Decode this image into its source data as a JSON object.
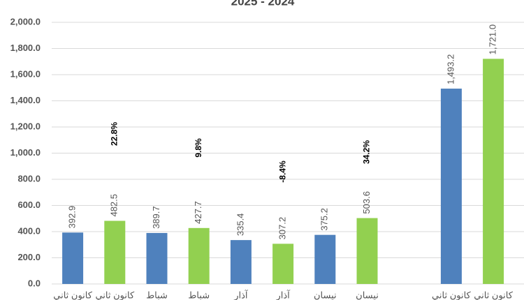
{
  "chart_data": {
    "type": "bar",
    "title": "2025 - 2024",
    "categories": [
      "كانون ثاني",
      "كانون ثاني",
      "شباط",
      "شباط",
      "آذار",
      "آذار",
      "نيسان",
      "نيسان",
      null,
      "كانون ثاني",
      "كانون ثاني"
    ],
    "values": [
      392.9,
      482.5,
      389.7,
      427.7,
      335.4,
      307.2,
      375.2,
      503.6,
      null,
      1493.2,
      1721.0
    ],
    "value_labels": [
      "392.9",
      "482.5",
      "389.7",
      "427.7",
      "335.4",
      "307.2",
      "375.2",
      "503.6",
      null,
      "1,493.2",
      "1,721.0"
    ],
    "colors": [
      "#4f81bd",
      "#92d050",
      "#4f81bd",
      "#92d050",
      "#4f81bd",
      "#92d050",
      "#4f81bd",
      "#92d050",
      null,
      "#4f81bd",
      "#92d050"
    ],
    "annotations": [
      "22.8%",
      "9.8%",
      "-8.4%",
      "34.2%"
    ],
    "ylim": [
      0,
      2000
    ],
    "yticks": [
      {
        "value": 0,
        "label": "0.0"
      },
      {
        "value": 200,
        "label": "200.0"
      },
      {
        "value": 400,
        "label": "400.0"
      },
      {
        "value": 600,
        "label": "600.0"
      },
      {
        "value": 800,
        "label": "800.0"
      },
      {
        "value": 1000,
        "label": "1,000.0"
      },
      {
        "value": 1200,
        "label": "1,200.0"
      },
      {
        "value": 1400,
        "label": "1,400.0"
      },
      {
        "value": 1600,
        "label": "1,600.0"
      },
      {
        "value": 1800,
        "label": "1,800.0"
      },
      {
        "value": 2000,
        "label": "2,000.0"
      }
    ],
    "grid": true
  }
}
